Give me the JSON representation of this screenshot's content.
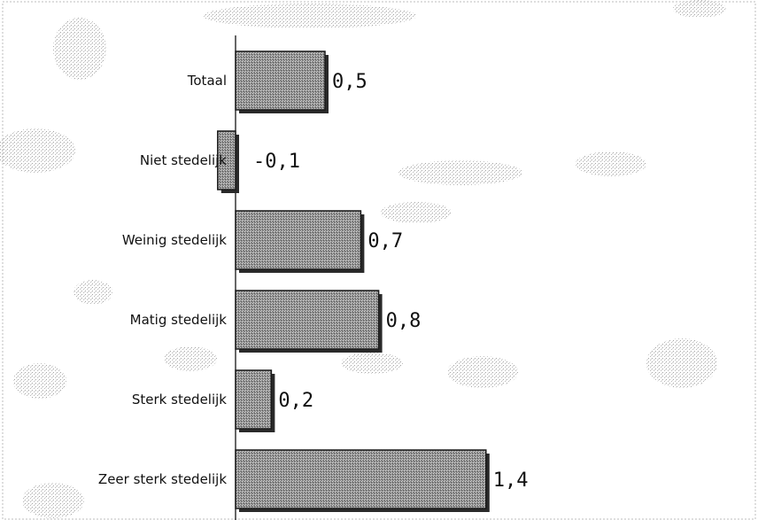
{
  "chart_data": {
    "type": "bar",
    "orientation": "horizontal",
    "categories": [
      "Totaal",
      "Niet stedelijk",
      "Weinig stedelijk",
      "Matig stedelijk",
      "Sterk stedelijk",
      "Zeer sterk stedelijk"
    ],
    "values": [
      0.5,
      -0.1,
      0.7,
      0.8,
      0.2,
      1.4
    ],
    "value_labels": [
      "0,5",
      "-0,1",
      "0,7",
      "0,8",
      "0,2",
      "1,4"
    ],
    "title": "",
    "xlabel": "",
    "ylabel": "",
    "xlim": [
      -0.2,
      2.3
    ],
    "grid": false,
    "legend": "none",
    "colors": {
      "bar": "#8c8c8c",
      "bar_edge": "#1a1a1a",
      "shadow": "#2a2a2a",
      "axis": "#000000",
      "border": "#bdbdbd",
      "noise": "#b8b8b8"
    }
  }
}
